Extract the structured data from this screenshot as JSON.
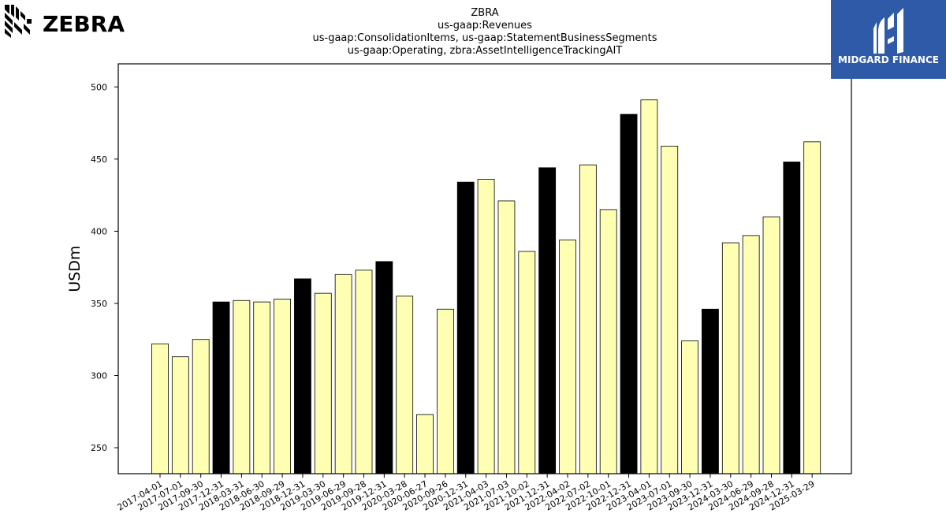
{
  "branding": {
    "company_logo_text": "ZEBRA",
    "company_logo_icon": "zebra-stripes-icon",
    "badge_text": "MIDGARD FINANCE",
    "badge_icon": "midgard-m-icon",
    "badge_color": "#2f5aa8"
  },
  "chart_data": {
    "type": "bar",
    "title_lines": [
      "ZBRA",
      "us-gaap:Revenues",
      "us-gaap:ConsolidationItems, us-gaap:StatementBusinessSegments",
      "us-gaap:Operating, zbra:AssetIntelligenceTrackingAIT"
    ],
    "ylabel": "USDm",
    "xlabel": "",
    "ylim": [
      232,
      516
    ],
    "yticks": [
      250,
      300,
      350,
      400,
      450,
      500
    ],
    "grid": false,
    "colors": {
      "quarter": "#ffffb3",
      "year_end": "#000000",
      "edge": "#000000"
    },
    "categories": [
      "2017-04-01",
      "2017-07-01",
      "2017-09-30",
      "2017-12-31",
      "2018-03-31",
      "2018-06-30",
      "2018-09-29",
      "2018-12-31",
      "2019-03-30",
      "2019-06-29",
      "2019-09-28",
      "2019-12-31",
      "2020-03-28",
      "2020-06-27",
      "2020-09-26",
      "2020-12-31",
      "2021-04-03",
      "2021-07-03",
      "2021-10-02",
      "2021-12-31",
      "2022-04-02",
      "2022-07-02",
      "2022-10-01",
      "2022-12-31",
      "2023-04-01",
      "2023-07-01",
      "2023-09-30",
      "2023-12-31",
      "2024-03-30",
      "2024-06-29",
      "2024-09-28",
      "2024-12-31",
      "2025-03-29"
    ],
    "values": [
      322,
      313,
      325,
      351,
      352,
      351,
      353,
      367,
      357,
      370,
      373,
      379,
      355,
      273,
      346,
      434,
      436,
      421,
      386,
      444,
      394,
      446,
      415,
      481,
      491,
      459,
      324,
      346,
      392,
      397,
      410,
      448,
      462
    ],
    "highlight": [
      false,
      false,
      false,
      true,
      false,
      false,
      false,
      true,
      false,
      false,
      false,
      true,
      false,
      false,
      false,
      true,
      false,
      false,
      false,
      true,
      false,
      false,
      false,
      true,
      false,
      false,
      false,
      true,
      false,
      false,
      false,
      true,
      false
    ]
  }
}
